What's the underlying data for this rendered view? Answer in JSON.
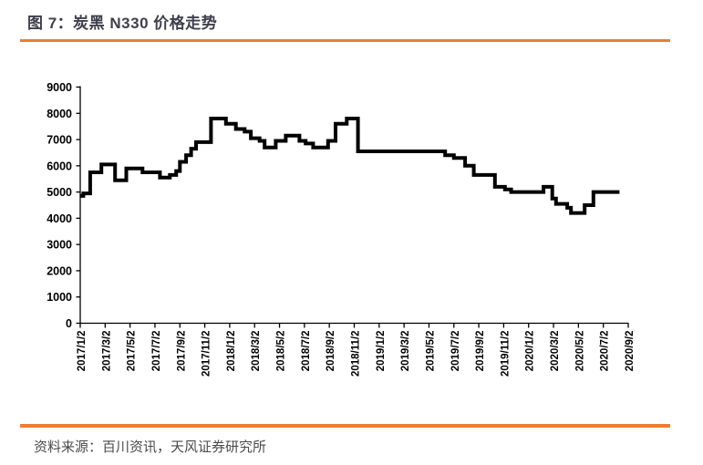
{
  "header": {
    "title": "图 7：炭黑 N330 价格走势"
  },
  "footer": {
    "source": "资料来源：百川资讯，天风证券研究所"
  },
  "colors": {
    "accent": "#ED7D31",
    "line": "#000000",
    "axis": "#000000",
    "tick_text": "#000000",
    "title_text": "#3F3F4C",
    "source_text": "#4A4A4A",
    "background": "#FFFFFF"
  },
  "chart_data": {
    "type": "line",
    "title": "炭黑 N330 价格走势",
    "legend": "none",
    "grid": false,
    "line_width": 4,
    "x_axis": {
      "epoch": "2017/1/2",
      "months_per_tick": 2,
      "tick_labels": [
        "2017/1/2",
        "2017/3/2",
        "2017/5/2",
        "2017/7/2",
        "2017/9/2",
        "2017/11/2",
        "2018/1/2",
        "2018/3/2",
        "2018/5/2",
        "2018/7/2",
        "2018/9/2",
        "2018/11/2",
        "2019/1/2",
        "2019/3/2",
        "2019/5/2",
        "2019/7/2",
        "2019/9/2",
        "2019/11/2",
        "2020/1/2",
        "2020/3/2",
        "2020/5/2",
        "2020/7/2",
        "2020/9/2"
      ],
      "range_months": [
        0,
        44
      ]
    },
    "y_axis": {
      "ticks": [
        0,
        1000,
        2000,
        3000,
        4000,
        5000,
        6000,
        7000,
        8000,
        9000
      ],
      "lim": [
        0,
        9000
      ]
    },
    "step_points": [
      [
        0.0,
        4850
      ],
      [
        0.25,
        4950
      ],
      [
        0.8,
        5750
      ],
      [
        1.7,
        6050
      ],
      [
        2.8,
        5450
      ],
      [
        3.7,
        5900
      ],
      [
        5.0,
        5750
      ],
      [
        6.4,
        5550
      ],
      [
        7.2,
        5650
      ],
      [
        7.7,
        5800
      ],
      [
        8.0,
        6150
      ],
      [
        8.5,
        6400
      ],
      [
        8.9,
        6650
      ],
      [
        9.3,
        6900
      ],
      [
        10.5,
        7800
      ],
      [
        11.7,
        7600
      ],
      [
        12.5,
        7400
      ],
      [
        13.2,
        7300
      ],
      [
        13.7,
        7050
      ],
      [
        14.4,
        6950
      ],
      [
        14.8,
        6700
      ],
      [
        15.7,
        6950
      ],
      [
        16.5,
        7150
      ],
      [
        17.6,
        6950
      ],
      [
        18.1,
        6850
      ],
      [
        18.7,
        6700
      ],
      [
        19.9,
        6950
      ],
      [
        20.5,
        7600
      ],
      [
        21.4,
        7800
      ],
      [
        22.3,
        6550
      ],
      [
        29.3,
        6400
      ],
      [
        30.0,
        6300
      ],
      [
        30.9,
        6000
      ],
      [
        31.6,
        5650
      ],
      [
        33.3,
        5200
      ],
      [
        34.1,
        5100
      ],
      [
        34.6,
        5000
      ],
      [
        37.2,
        5200
      ],
      [
        37.9,
        4750
      ],
      [
        38.2,
        4550
      ],
      [
        39.1,
        4400
      ],
      [
        39.4,
        4200
      ],
      [
        40.5,
        4500
      ],
      [
        41.2,
        5000
      ],
      [
        43.3,
        5000
      ]
    ]
  }
}
